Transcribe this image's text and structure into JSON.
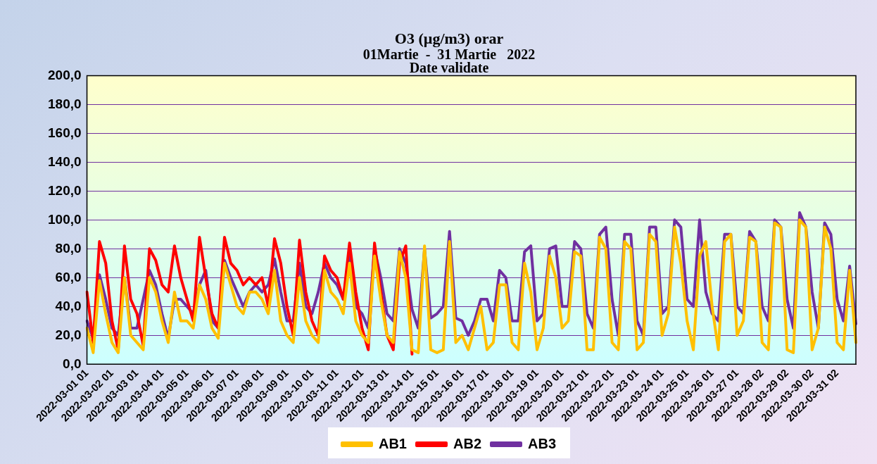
{
  "chart_data": {
    "type": "line",
    "title": "O3 (µg/m3) orar",
    "subtitle": "01Martie  -  31 Martie   2022\nDate validate",
    "categories": [
      "2022-03-01 01",
      null,
      null,
      null,
      "2022-03-02 01",
      null,
      null,
      null,
      "2022-03-03 01",
      null,
      null,
      null,
      "2022-03-04 01",
      null,
      null,
      null,
      "2022-03-05 01",
      null,
      null,
      null,
      "2022-03-06 01",
      null,
      null,
      null,
      "2022-03-07 01",
      null,
      null,
      null,
      "2022-03-08 01",
      null,
      null,
      null,
      "2022-03-09 01",
      null,
      null,
      null,
      "2022-03-10 01",
      null,
      null,
      null,
      "2022-03-11 01",
      null,
      null,
      null,
      "2022-03-12 01",
      null,
      null,
      null,
      "2022-03-13 01",
      null,
      null,
      null,
      "2022-03-14 01",
      null,
      null,
      null,
      "2022-03-15 01",
      null,
      null,
      null,
      "2022-03-16 01",
      null,
      null,
      null,
      "2022-03-17 01",
      null,
      null,
      null,
      "2022-03-18 01",
      null,
      null,
      null,
      "2022-03-19 01",
      null,
      null,
      null,
      "2022-03-20 01",
      null,
      null,
      null,
      "2022-03-21 01",
      null,
      null,
      null,
      "2022-03-22 01",
      null,
      null,
      null,
      "2022-03-23 01",
      null,
      null,
      null,
      "2022-03-24 01",
      null,
      null,
      null,
      "2022-03-25 01",
      null,
      null,
      null,
      "2022-03-26 01",
      null,
      null,
      null,
      "2022-03-27 01",
      null,
      null,
      null,
      "2022-03-28 02",
      null,
      null,
      null,
      "2022-03-29 02",
      null,
      null,
      null,
      "2022-03-30 02",
      null,
      null,
      null,
      "2022-03-31 02",
      null,
      null,
      null
    ],
    "series": [
      {
        "name": "AB1",
        "color": "#ffc000",
        "values": [
          25,
          8,
          58,
          35,
          15,
          8,
          60,
          20,
          15,
          10,
          60,
          50,
          30,
          15,
          50,
          30,
          30,
          25,
          55,
          45,
          25,
          18,
          70,
          55,
          40,
          35,
          50,
          50,
          45,
          35,
          65,
          30,
          20,
          15,
          60,
          30,
          20,
          15,
          65,
          50,
          45,
          35,
          70,
          30,
          20,
          15,
          75,
          45,
          20,
          15,
          78,
          60,
          10,
          8,
          82,
          10,
          8,
          10,
          85,
          15,
          20,
          10,
          25,
          40,
          10,
          15,
          55,
          55,
          15,
          10,
          70,
          50,
          10,
          25,
          75,
          60,
          25,
          30,
          78,
          75,
          10,
          10,
          88,
          80,
          15,
          10,
          85,
          80,
          10,
          15,
          90,
          85,
          20,
          35,
          95,
          70,
          30,
          10,
          75,
          85,
          40,
          10,
          85,
          90,
          20,
          30,
          88,
          85,
          15,
          10,
          98,
          95,
          10,
          8,
          100,
          95,
          10,
          25,
          95,
          80,
          15,
          10,
          65,
          15
        ]
      },
      {
        "name": "AB2",
        "color": "#ff0000",
        "values": [
          50,
          15,
          85,
          70,
          30,
          10,
          82,
          45,
          35,
          13,
          80,
          72,
          55,
          50,
          82,
          60,
          45,
          30,
          88,
          60,
          35,
          25,
          88,
          70,
          65,
          55,
          60,
          55,
          60,
          40,
          87,
          70,
          40,
          20,
          86,
          50,
          30,
          20,
          75,
          65,
          60,
          45,
          84,
          50,
          25,
          10,
          84,
          50,
          20,
          10,
          70,
          82,
          7,
          null,
          null,
          null,
          null,
          null,
          null,
          null,
          null,
          null,
          null,
          null,
          null,
          null,
          null,
          null,
          null,
          null,
          null,
          null,
          null,
          null,
          null,
          null,
          null,
          null,
          null,
          null,
          null,
          null,
          null,
          null,
          null,
          null,
          null,
          null,
          null,
          null,
          null,
          null,
          null,
          null,
          null,
          null,
          null,
          null,
          null,
          null,
          null,
          null,
          null,
          null,
          null,
          null,
          null,
          null,
          null,
          null,
          null,
          null,
          null,
          null,
          null,
          null,
          null,
          null,
          null,
          null,
          null,
          null,
          null,
          null
        ]
      },
      {
        "name": "AB3",
        "color": "#7030a0",
        "values": [
          30,
          18,
          62,
          45,
          25,
          20,
          60,
          25,
          25,
          45,
          65,
          55,
          35,
          18,
          45,
          45,
          40,
          35,
          55,
          65,
          30,
          25,
          72,
          60,
          50,
          40,
          50,
          55,
          50,
          55,
          73,
          50,
          30,
          30,
          70,
          40,
          35,
          50,
          70,
          60,
          55,
          45,
          75,
          40,
          35,
          25,
          80,
          60,
          35,
          30,
          80,
          70,
          38,
          25,
          80,
          32,
          35,
          40,
          92,
          32,
          30,
          20,
          30,
          45,
          45,
          30,
          65,
          60,
          30,
          30,
          78,
          82,
          30,
          35,
          80,
          82,
          40,
          40,
          85,
          80,
          35,
          25,
          90,
          95,
          45,
          20,
          90,
          90,
          30,
          20,
          95,
          95,
          35,
          40,
          100,
          95,
          45,
          40,
          100,
          50,
          35,
          30,
          90,
          90,
          40,
          35,
          92,
          85,
          40,
          30,
          100,
          95,
          45,
          25,
          105,
          95,
          50,
          25,
          98,
          90,
          45,
          30,
          68,
          28
        ]
      }
    ],
    "ylim": [
      0,
      200
    ],
    "yticks": [
      {
        "value": 0,
        "label": "0,0"
      },
      {
        "value": 20,
        "label": "20,0"
      },
      {
        "value": 40,
        "label": "40,0"
      },
      {
        "value": 60,
        "label": "60,0"
      },
      {
        "value": 80,
        "label": "80,0"
      },
      {
        "value": 100,
        "label": "100,0"
      },
      {
        "value": 120,
        "label": "120,0"
      },
      {
        "value": 140,
        "label": "140,0"
      },
      {
        "value": 160,
        "label": "160,0"
      },
      {
        "value": 180,
        "label": "180,0"
      },
      {
        "value": 200,
        "label": "200,0"
      }
    ],
    "grid": "y",
    "legend": "bottom",
    "marker": "none",
    "line_style": "solid"
  }
}
